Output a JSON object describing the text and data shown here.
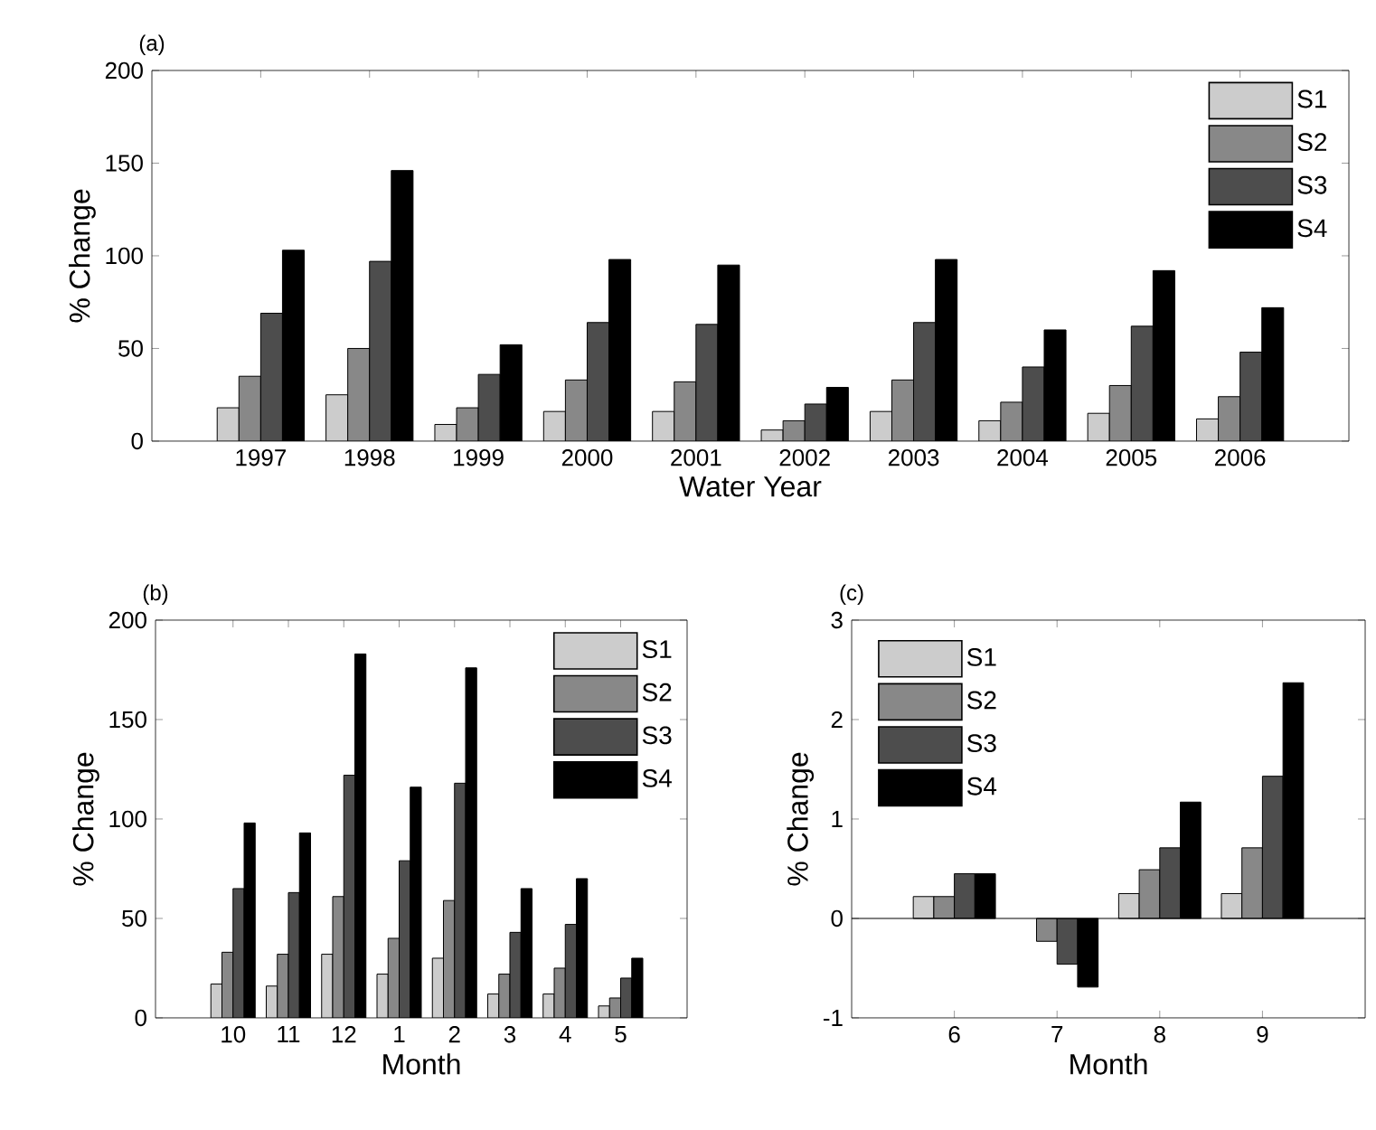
{
  "chart_data": [
    {
      "type": "bar",
      "title": "(a)",
      "xlabel": "Water Year",
      "ylabel": "% Change",
      "categories": [
        "1997",
        "1998",
        "1999",
        "2000",
        "2001",
        "2002",
        "2003",
        "2004",
        "2005",
        "2006"
      ],
      "ylim": [
        0,
        200
      ],
      "yticks": [
        0,
        50,
        100,
        150,
        200
      ],
      "legend": "top right",
      "series": [
        {
          "name": "S1",
          "color": "#cccccc",
          "values": [
            18,
            25,
            9,
            16,
            16,
            6,
            16,
            11,
            15,
            12
          ]
        },
        {
          "name": "S2",
          "color": "#888888",
          "values": [
            35,
            50,
            18,
            33,
            32,
            11,
            33,
            21,
            30,
            24
          ]
        },
        {
          "name": "S3",
          "color": "#4d4d4d",
          "values": [
            69,
            97,
            36,
            64,
            63,
            20,
            64,
            40,
            62,
            48
          ]
        },
        {
          "name": "S4",
          "color": "#000000",
          "values": [
            103,
            146,
            52,
            98,
            95,
            29,
            98,
            60,
            92,
            72
          ]
        }
      ]
    },
    {
      "type": "bar",
      "title": "(b)",
      "xlabel": "Month",
      "ylabel": "% Change",
      "categories": [
        "10",
        "11",
        "12",
        "1",
        "2",
        "3",
        "4",
        "5"
      ],
      "ylim": [
        0,
        200
      ],
      "yticks": [
        0,
        50,
        100,
        150,
        200
      ],
      "legend": "top right",
      "series": [
        {
          "name": "S1",
          "color": "#cccccc",
          "values": [
            17,
            16,
            32,
            22,
            30,
            12,
            12,
            6
          ]
        },
        {
          "name": "S2",
          "color": "#888888",
          "values": [
            33,
            32,
            61,
            40,
            59,
            22,
            25,
            10
          ]
        },
        {
          "name": "S3",
          "color": "#4d4d4d",
          "values": [
            65,
            63,
            122,
            79,
            118,
            43,
            47,
            20
          ]
        },
        {
          "name": "S4",
          "color": "#000000",
          "values": [
            98,
            93,
            183,
            116,
            176,
            65,
            70,
            30
          ]
        }
      ]
    },
    {
      "type": "bar",
      "title": "(c)",
      "xlabel": "Month",
      "ylabel": "% Change",
      "categories": [
        "6",
        "7",
        "8",
        "9"
      ],
      "ylim": [
        -1,
        3
      ],
      "yticks": [
        -1,
        0,
        1,
        2,
        3
      ],
      "legend": "top left",
      "series": [
        {
          "name": "S1",
          "color": "#cccccc",
          "values": [
            0.22,
            null,
            0.25,
            0.25
          ]
        },
        {
          "name": "S2",
          "color": "#888888",
          "values": [
            0.22,
            -0.23,
            0.49,
            0.71
          ]
        },
        {
          "name": "S3",
          "color": "#4d4d4d",
          "values": [
            0.45,
            -0.46,
            0.71,
            1.43
          ]
        },
        {
          "name": "S4",
          "color": "#000000",
          "values": [
            0.45,
            -0.69,
            1.17,
            2.37
          ]
        }
      ]
    }
  ]
}
